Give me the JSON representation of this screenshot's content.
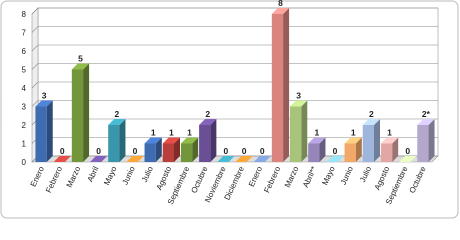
{
  "chart_data": {
    "type": "bar3d",
    "categories": [
      "Enero",
      "Febrero",
      "Marzo",
      "Abril",
      "Mayo",
      "Junio",
      "Julio",
      "Agosto",
      "Septiembre",
      "Octubre",
      "Noviembre",
      "Diciembre",
      "Enero",
      "Febrero",
      "Marzo",
      "Abril**",
      "Mayo",
      "Junio",
      "Julio",
      "Agosto",
      "Septiembre",
      "Octubre"
    ],
    "values": [
      3,
      0,
      5,
      0,
      2,
      0,
      1,
      1,
      1,
      2,
      0,
      0,
      0,
      8,
      3,
      1,
      0,
      1,
      2,
      1,
      0,
      2
    ],
    "value_labels": [
      "3",
      "0",
      "5",
      "0",
      "2",
      "0",
      "1",
      "1",
      "1",
      "2",
      "0",
      "0",
      "0",
      "8",
      "3",
      "1",
      "0",
      "1",
      "2",
      "1",
      "0",
      "2*"
    ],
    "colors": [
      "#3f6bb0",
      "#b83f3a",
      "#73963a",
      "#6a4f96",
      "#3a96aa",
      "#e0862e",
      "#3f6bb0",
      "#b83f3a",
      "#73963a",
      "#6a4f96",
      "#3a96aa",
      "#e0862e",
      "#6c87b8",
      "#d9847e",
      "#a8c47a",
      "#9585b8",
      "#7ab8c7",
      "#f2a868",
      "#9fb6dc",
      "#e2a6a4",
      "#bcd49c",
      "#b3a8cc"
    ],
    "ylim": [
      0,
      8
    ],
    "yticks": [
      0,
      1,
      2,
      3,
      4,
      5,
      6,
      7,
      8
    ],
    "grid": true
  }
}
